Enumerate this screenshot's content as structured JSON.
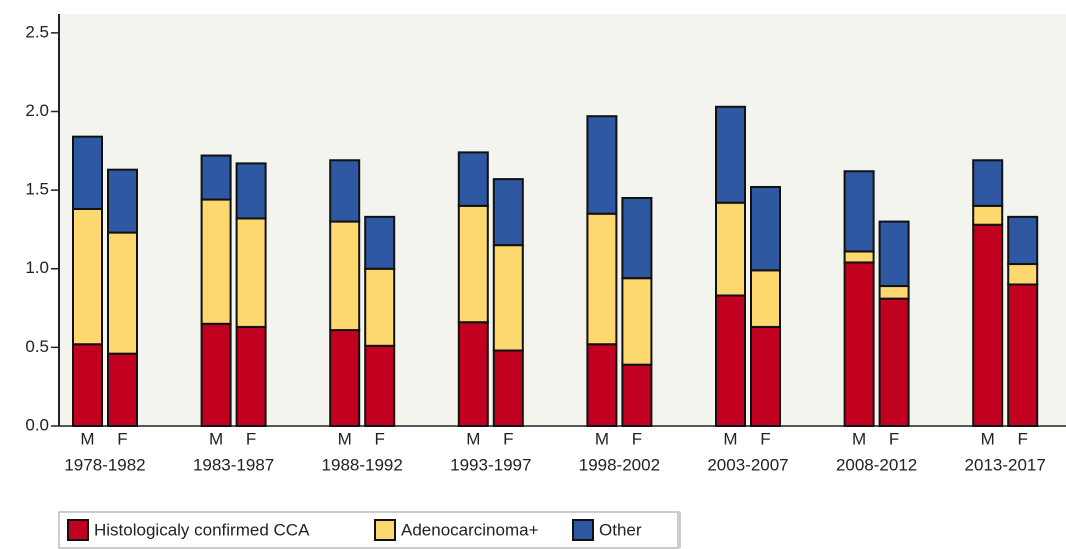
{
  "chart_data": {
    "type": "stacked-bar",
    "groups": [
      "1978-1982",
      "1983-1987",
      "1988-1992",
      "1993-1997",
      "1998-2002",
      "2003-2007",
      "2008-2012",
      "2013-2017"
    ],
    "categories": [
      "M",
      "F",
      "M",
      "F",
      "M",
      "F",
      "M",
      "F",
      "M",
      "F",
      "M",
      "F",
      "M",
      "F",
      "M",
      "F"
    ],
    "series": [
      {
        "name": "Histologicaly confirmed CCA",
        "color": "#c20020",
        "values": [
          0.52,
          0.46,
          0.65,
          0.63,
          0.61,
          0.51,
          0.66,
          0.48,
          0.52,
          0.39,
          0.83,
          0.63,
          1.04,
          0.81,
          1.28,
          0.9
        ]
      },
      {
        "name": "Adenocarcinoma+",
        "color": "#fdd86e",
        "values": [
          0.86,
          0.77,
          0.79,
          0.69,
          0.69,
          0.49,
          0.74,
          0.67,
          0.83,
          0.55,
          0.59,
          0.36,
          0.07,
          0.08,
          0.12,
          0.13
        ]
      },
      {
        "name": "Other",
        "color": "#2e58a2",
        "values": [
          0.46,
          0.4,
          0.28,
          0.35,
          0.39,
          0.33,
          0.34,
          0.42,
          0.62,
          0.51,
          0.61,
          0.53,
          0.51,
          0.41,
          0.29,
          0.3
        ]
      }
    ],
    "ylim": [
      0,
      2.62
    ],
    "yticks": [
      {
        "value": 0,
        "label": "0.0"
      },
      0.5,
      {
        "value": 1,
        "label": "1.0"
      },
      1.5,
      {
        "value": 2,
        "label": "2.0"
      },
      2.5
    ]
  }
}
